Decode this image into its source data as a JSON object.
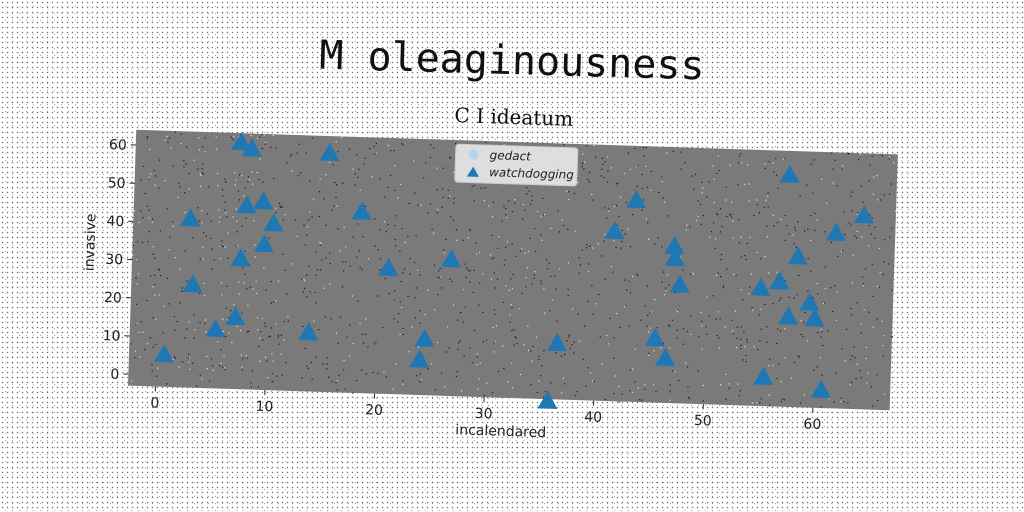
{
  "chart_data": {
    "type": "scatter",
    "title": "M oleaginousness",
    "subtitle": "C I ideatum",
    "xlabel": "incalendared",
    "ylabel": "invasive",
    "xlim": [
      -2.5,
      67
    ],
    "ylim": [
      -3,
      64
    ],
    "xticks": [
      0,
      10,
      20,
      30,
      40,
      50,
      60
    ],
    "yticks": [
      0,
      10,
      20,
      30,
      40,
      50,
      60
    ],
    "grid": false,
    "legend_position": "top-center",
    "colors": {
      "plot_background": "#7a7a7a",
      "marker": "#1f77b4",
      "legend_box": "#e6e6e6"
    },
    "series": [
      {
        "name": "gedact",
        "marker": "circle",
        "color": "#b3d7ee",
        "points": []
      },
      {
        "name": "watchdogging",
        "marker": "triangle",
        "color": "#1f77b4",
        "points": [
          [
            0.7,
            5.5
          ],
          [
            2.7,
            41.3
          ],
          [
            3.1,
            24.1
          ],
          [
            5.3,
            12.6
          ],
          [
            7.1,
            61.7
          ],
          [
            7.1,
            15.9
          ],
          [
            7.4,
            31.3
          ],
          [
            7.8,
            45.2
          ],
          [
            8.1,
            60.1
          ],
          [
            9.3,
            46.4
          ],
          [
            9.5,
            35.2
          ],
          [
            10.3,
            40.7
          ],
          [
            13.8,
            12.5
          ],
          [
            15.2,
            59.6
          ],
          [
            18.3,
            44.5
          ],
          [
            20.9,
            30.0
          ],
          [
            24.0,
            6.3
          ],
          [
            24.4,
            11.8
          ],
          [
            26.6,
            32.8
          ],
          [
            35.8,
            -3.4
          ],
          [
            36.5,
            11.8
          ],
          [
            41.4,
            41.6
          ],
          [
            43.3,
            49.9
          ],
          [
            45.4,
            13.9
          ],
          [
            46.4,
            8.8
          ],
          [
            46.9,
            38.1
          ],
          [
            47.0,
            35.0
          ],
          [
            47.5,
            28.1
          ],
          [
            54.9,
            28.0
          ],
          [
            55.4,
            4.7
          ],
          [
            56.6,
            29.8
          ],
          [
            57.2,
            57.8
          ],
          [
            57.5,
            20.7
          ],
          [
            58.2,
            36.5
          ],
          [
            59.4,
            24.5
          ],
          [
            59.9,
            20.4
          ],
          [
            60.7,
            1.8
          ],
          [
            61.6,
            43.0
          ],
          [
            64.1,
            47.8
          ]
        ]
      }
    ]
  }
}
